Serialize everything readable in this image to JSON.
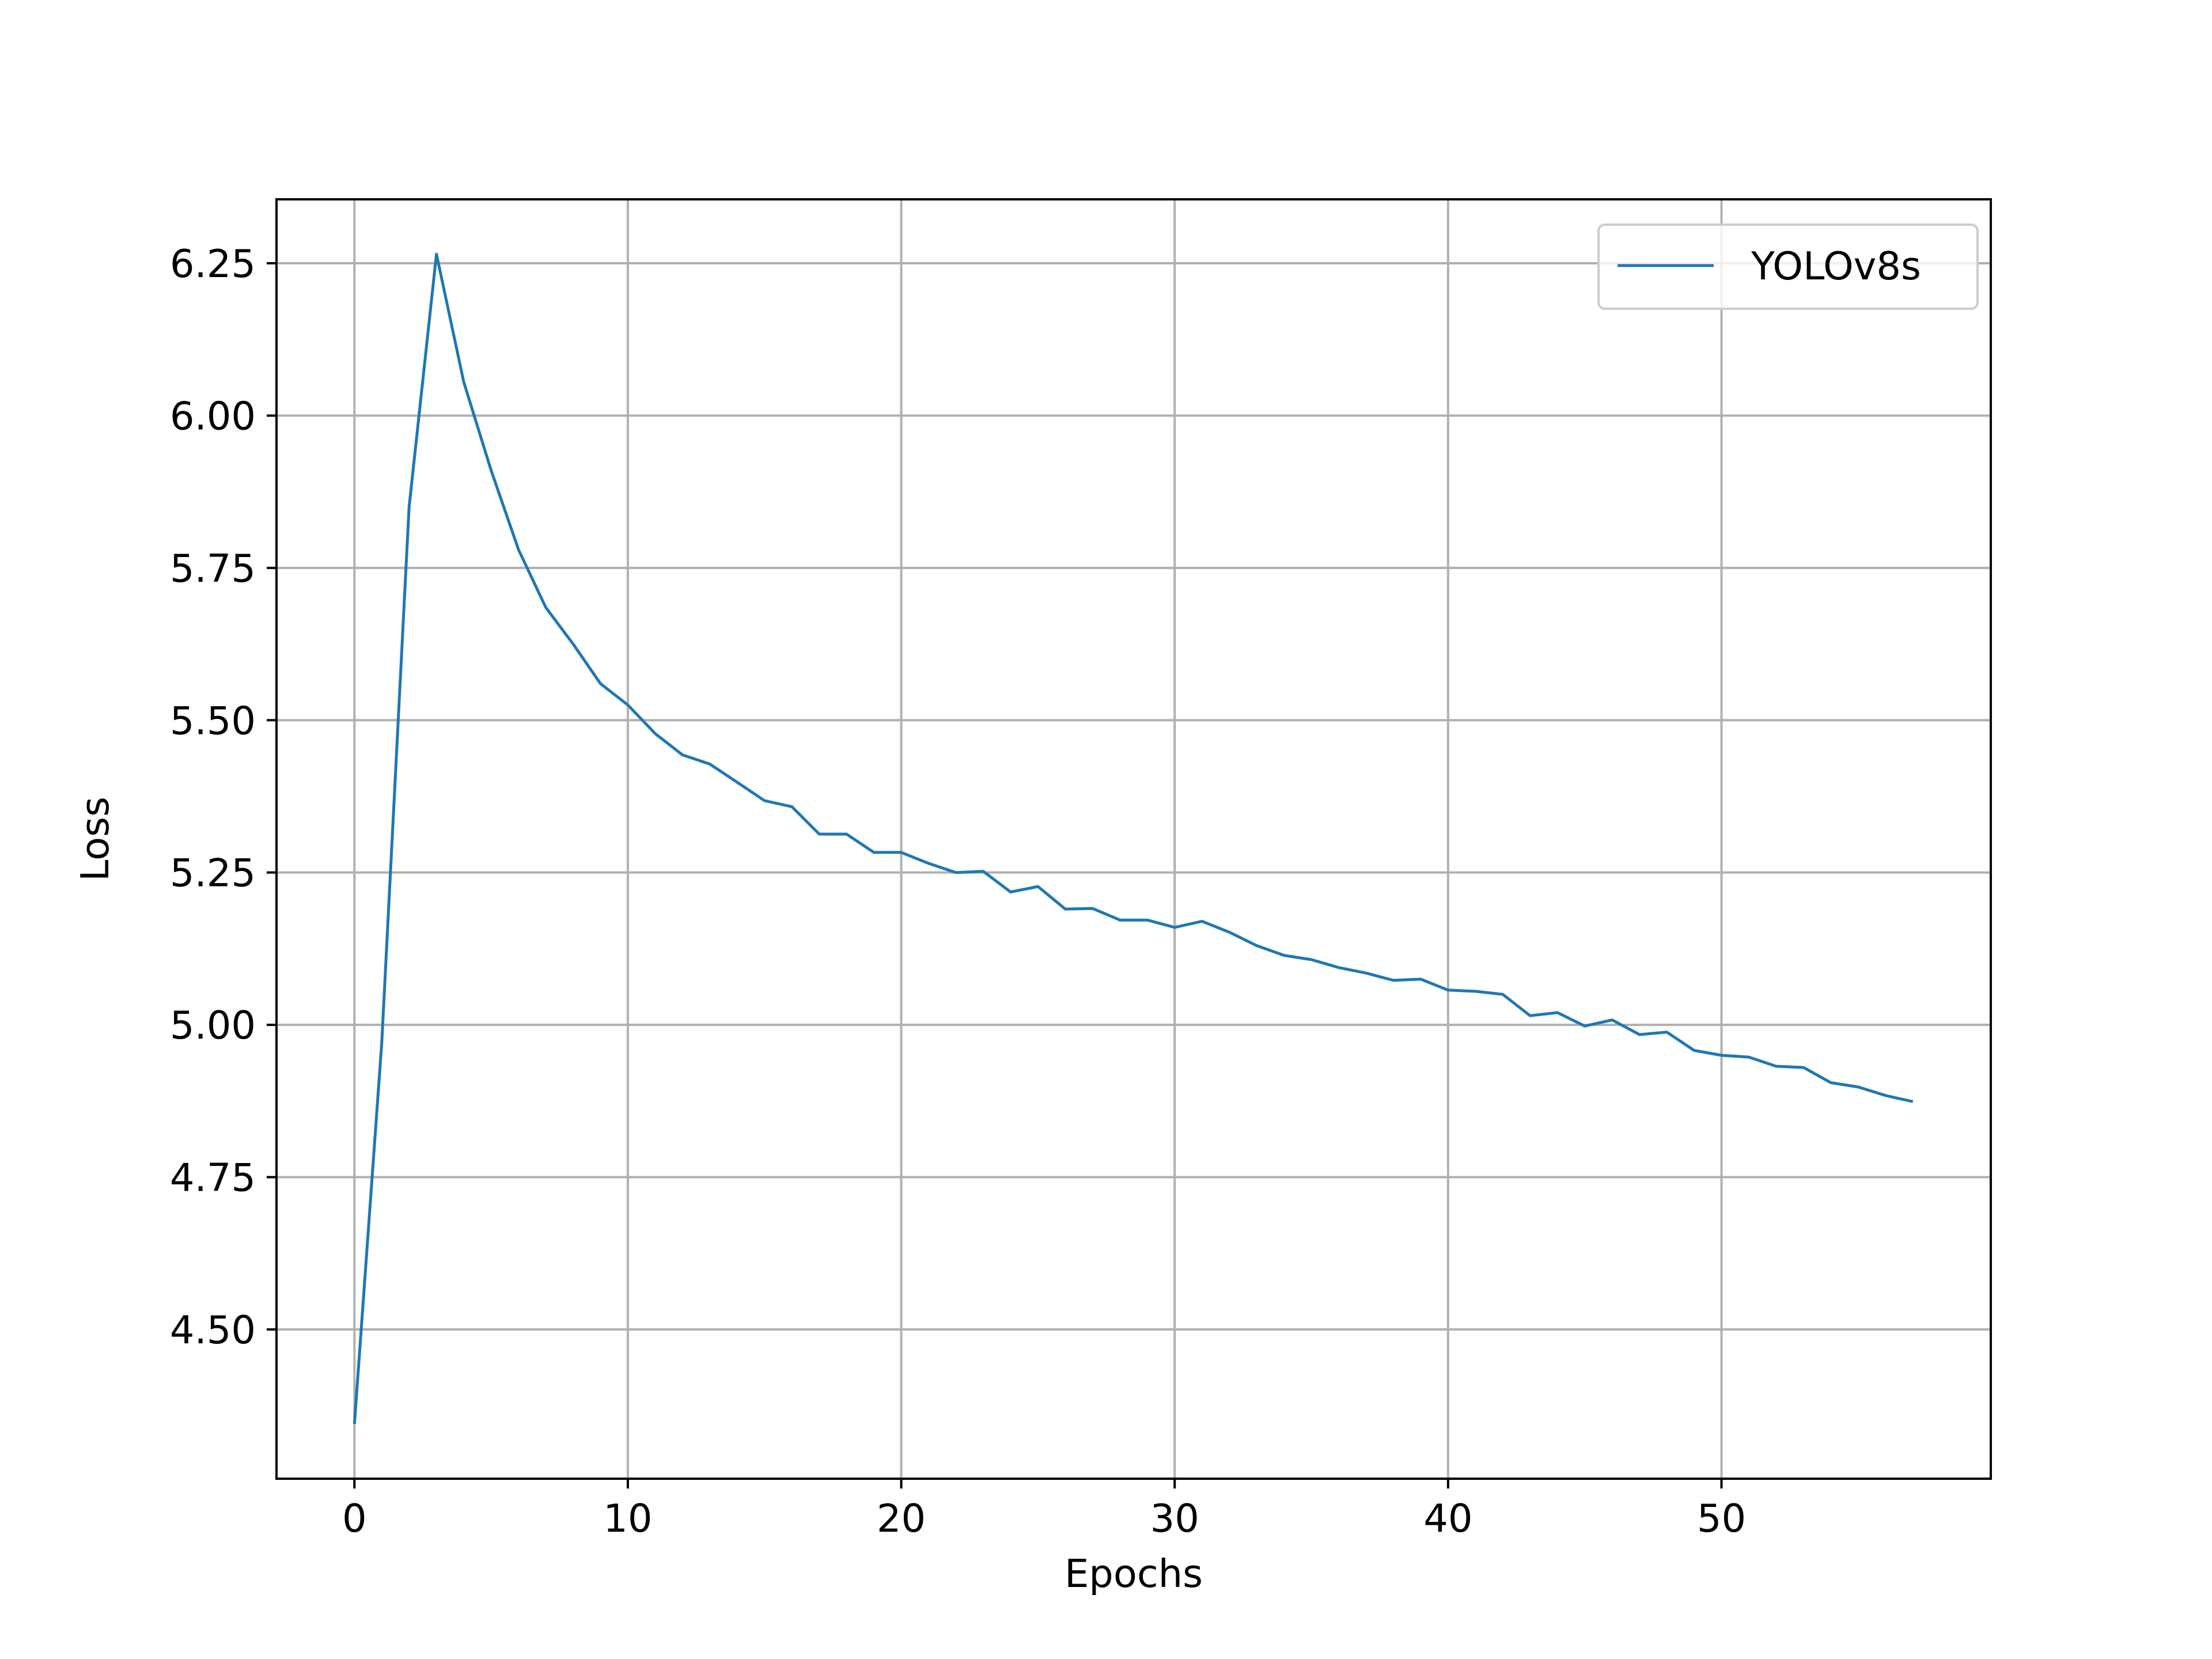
{
  "chart_data": {
    "type": "line",
    "xlabel": "Epochs",
    "ylabel": "Loss",
    "xlim": [
      -2.85,
      59.85
    ],
    "ylim": [
      4.255,
      6.355
    ],
    "xticks": [
      0,
      10,
      20,
      30,
      40,
      50
    ],
    "yticks": [
      4.5,
      4.75,
      5.0,
      5.25,
      5.5,
      5.75,
      6.0,
      6.25
    ],
    "xtick_labels": [
      "0",
      "10",
      "20",
      "30",
      "40",
      "50"
    ],
    "ytick_labels": [
      "4.50",
      "4.75",
      "5.00",
      "5.25",
      "5.50",
      "5.75",
      "6.00",
      "6.25"
    ],
    "grid": true,
    "legend_position": "top-right",
    "series": [
      {
        "name": "YOLOv8s",
        "color": "#1f77b4",
        "x": [
          0,
          1,
          2,
          3,
          4,
          5,
          6,
          7,
          8,
          9,
          10,
          11,
          12,
          13,
          14,
          15,
          16,
          17,
          18,
          19,
          20,
          21,
          22,
          23,
          24,
          25,
          26,
          27,
          28,
          29,
          30,
          31,
          32,
          33,
          34,
          35,
          36,
          37,
          38,
          39,
          40,
          41,
          42,
          43,
          44,
          45,
          46,
          47,
          48,
          49,
          50,
          51,
          52,
          53,
          54,
          55,
          56,
          57
        ],
        "y": [
          4.345,
          4.97,
          5.85,
          6.265,
          6.055,
          5.91,
          5.78,
          5.685,
          5.625,
          5.56,
          5.525,
          5.478,
          5.443,
          5.428,
          5.398,
          5.368,
          5.358,
          5.313,
          5.313,
          5.283,
          5.283,
          5.265,
          5.25,
          5.252,
          5.218,
          5.227,
          5.19,
          5.191,
          5.172,
          5.172,
          5.16,
          5.17,
          5.152,
          5.13,
          5.114,
          5.107,
          5.094,
          5.085,
          5.073,
          5.075,
          5.057,
          5.055,
          5.05,
          5.015,
          5.02,
          4.998,
          5.008,
          4.984,
          4.988,
          4.958,
          4.95,
          4.947,
          4.932,
          4.93,
          4.905,
          4.898,
          4.884,
          4.874
        ]
      }
    ]
  }
}
